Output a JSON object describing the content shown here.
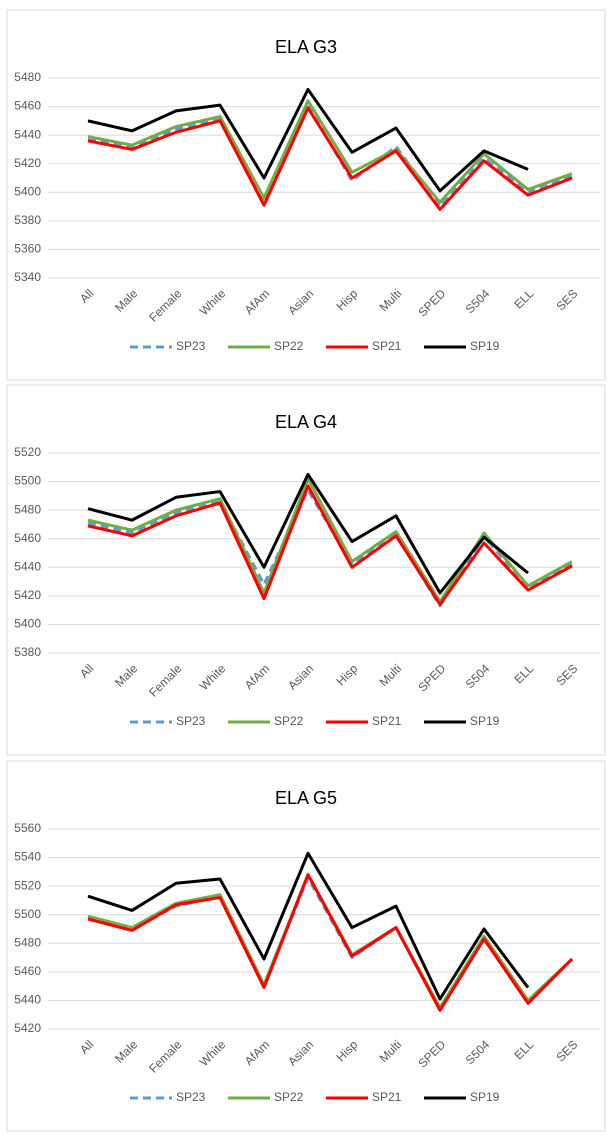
{
  "chart_data": [
    {
      "type": "line",
      "title": "ELA G3",
      "categories": [
        "All",
        "Male",
        "Female",
        "White",
        "AfAm",
        "Asian",
        "Hisp",
        "Multi",
        "SPED",
        "S504",
        "ELL",
        "SES"
      ],
      "ylim": [
        5340,
        5480
      ],
      "yticks": [
        5340,
        5360,
        5380,
        5400,
        5420,
        5440,
        5460,
        5480
      ],
      "grid": true,
      "legend": "bottom",
      "series": [
        {
          "name": "SP23",
          "color": "#5b9bd5",
          "dashed": true,
          "values": [
            5437,
            5432,
            5444,
            5451,
            5393,
            5461,
            5408,
            5432,
            5390,
            5424,
            5400,
            5411
          ]
        },
        {
          "name": "SP22",
          "color": "#70ad47",
          "values": [
            5439,
            5433,
            5446,
            5453,
            5396,
            5464,
            5414,
            5430,
            5393,
            5427,
            5402,
            5413
          ]
        },
        {
          "name": "SP21",
          "color": "#ff0000",
          "values": [
            5436,
            5430,
            5442,
            5450,
            5391,
            5459,
            5410,
            5429,
            5388,
            5422,
            5398,
            5410
          ]
        },
        {
          "name": "SP19",
          "color": "#000000",
          "values": [
            5450,
            5443,
            5457,
            5461,
            5410,
            5472,
            5428,
            5445,
            5401,
            5429,
            5416,
            null
          ]
        }
      ]
    },
    {
      "type": "line",
      "title": "ELA G4",
      "categories": [
        "All",
        "Male",
        "Female",
        "White",
        "AfAm",
        "Asian",
        "Hisp",
        "Multi",
        "SPED",
        "S504",
        "ELL",
        "SES"
      ],
      "ylim": [
        5380,
        5520
      ],
      "yticks": [
        5380,
        5400,
        5420,
        5440,
        5460,
        5480,
        5500,
        5520
      ],
      "grid": true,
      "legend": "bottom",
      "series": [
        {
          "name": "SP23",
          "color": "#5b9bd5",
          "dashed": true,
          "values": [
            5471,
            5464,
            5478,
            5486,
            5428,
            5494,
            5442,
            5463,
            5413,
            5462,
            5425,
            5442
          ]
        },
        {
          "name": "SP22",
          "color": "#70ad47",
          "values": [
            5473,
            5466,
            5480,
            5488,
            5422,
            5502,
            5444,
            5465,
            5416,
            5464,
            5427,
            5444
          ]
        },
        {
          "name": "SP21",
          "color": "#ff0000",
          "values": [
            5469,
            5462,
            5476,
            5485,
            5418,
            5497,
            5440,
            5462,
            5414,
            5457,
            5424,
            5441
          ]
        },
        {
          "name": "SP19",
          "color": "#000000",
          "values": [
            5481,
            5473,
            5489,
            5493,
            5440,
            5505,
            5458,
            5476,
            5422,
            5461,
            5436,
            null
          ]
        }
      ]
    },
    {
      "type": "line",
      "title": "ELA G5",
      "categories": [
        "All",
        "Male",
        "Female",
        "White",
        "AfAm",
        "Asian",
        "Hisp",
        "Multi",
        "SPED",
        "S504",
        "ELL",
        "SES"
      ],
      "ylim": [
        5420,
        5560
      ],
      "yticks": [
        5420,
        5440,
        5460,
        5480,
        5500,
        5520,
        5540,
        5560
      ],
      "grid": true,
      "legend": "bottom",
      "series": [
        {
          "name": "SP23",
          "color": "#5b9bd5",
          "dashed": true,
          "values": [
            5498,
            5490,
            5506,
            5513,
            5450,
            5526,
            5470,
            5491,
            5434,
            5484,
            5439,
            5469
          ]
        },
        {
          "name": "SP22",
          "color": "#70ad47",
          "values": [
            5499,
            5491,
            5508,
            5514,
            5451,
            5528,
            5472,
            5491,
            5435,
            5485,
            5440,
            5469
          ]
        },
        {
          "name": "SP21",
          "color": "#ff0000",
          "values": [
            5497,
            5489,
            5507,
            5512,
            5449,
            5528,
            5471,
            5491,
            5433,
            5483,
            5438,
            5469
          ]
        },
        {
          "name": "SP19",
          "color": "#000000",
          "values": [
            5513,
            5503,
            5522,
            5525,
            5469,
            5543,
            5491,
            5506,
            5441,
            5490,
            5449,
            null
          ]
        }
      ]
    }
  ]
}
